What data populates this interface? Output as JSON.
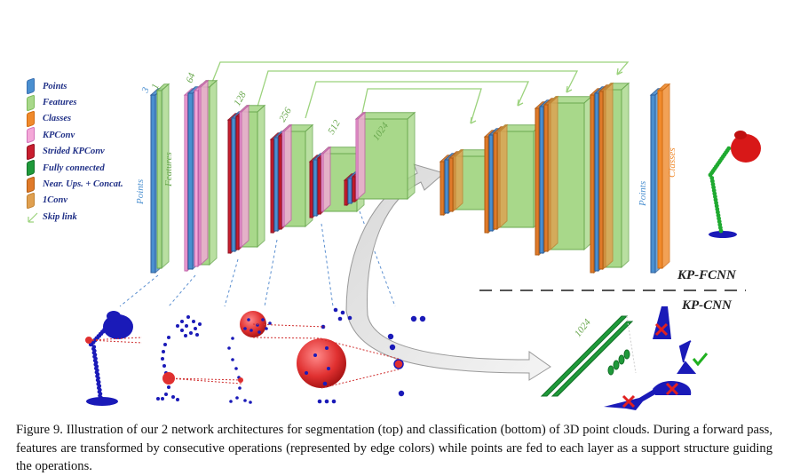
{
  "legend": [
    {
      "label": "Points",
      "color": "#4a8fd0",
      "border": "#3a6fb0"
    },
    {
      "label": "Features",
      "color": "#a8d88a",
      "border": "#7cba5a"
    },
    {
      "label": "Classes",
      "color": "#f08a2c",
      "border": "#d06a10"
    },
    {
      "label": "KPConv",
      "color": "#f4a8d8",
      "border": "#d070b8"
    },
    {
      "label": "Strided KPConv",
      "color": "#c81e2e",
      "border": "#901020"
    },
    {
      "label": "Fully connected",
      "color": "#1f9a3a",
      "border": "#137028"
    },
    {
      "label": "Near. Ups. + Concat.",
      "color": "#e07a2a",
      "border": "#b05a10"
    },
    {
      "label": "1Conv",
      "color": "#e0a050",
      "border": "#c08030"
    },
    {
      "label": "Skip link",
      "color": "#9bd27c",
      "border": "#9bd27c"
    }
  ],
  "top_labels": {
    "input_points": "3",
    "input_features": "1",
    "l1": "64",
    "l2": "128",
    "l3": "256",
    "l4": "512",
    "l5": "1024",
    "points_word": "Points",
    "features_word": "Features",
    "classes_word": "Classes"
  },
  "bottom_labels": {
    "fc": "1024"
  },
  "net_names": {
    "fcnn": "KP-FCNN",
    "cnn": "KP-CNN"
  },
  "caption": {
    "text": "Figure 9. Illustration of our 2 network architectures for segmentation (top) and classification (bottom) of 3D point clouds. During a forward pass, features are transformed by consecutive operations (represented by edge colors) while points are fed to each layer as a support structure guiding the operations."
  },
  "colors": {
    "points": "#4a8fd0",
    "features": "#a8d88a",
    "classes": "#f08a2c",
    "kpconv": "#f4a8d8",
    "strided": "#c81e2e",
    "fc": "#1f9a3a",
    "upsample": "#e07a2a",
    "conv1": "#e0a050",
    "skip": "#9bd27c",
    "lamp": "#1a1ab8",
    "sphere": "#e03030"
  }
}
